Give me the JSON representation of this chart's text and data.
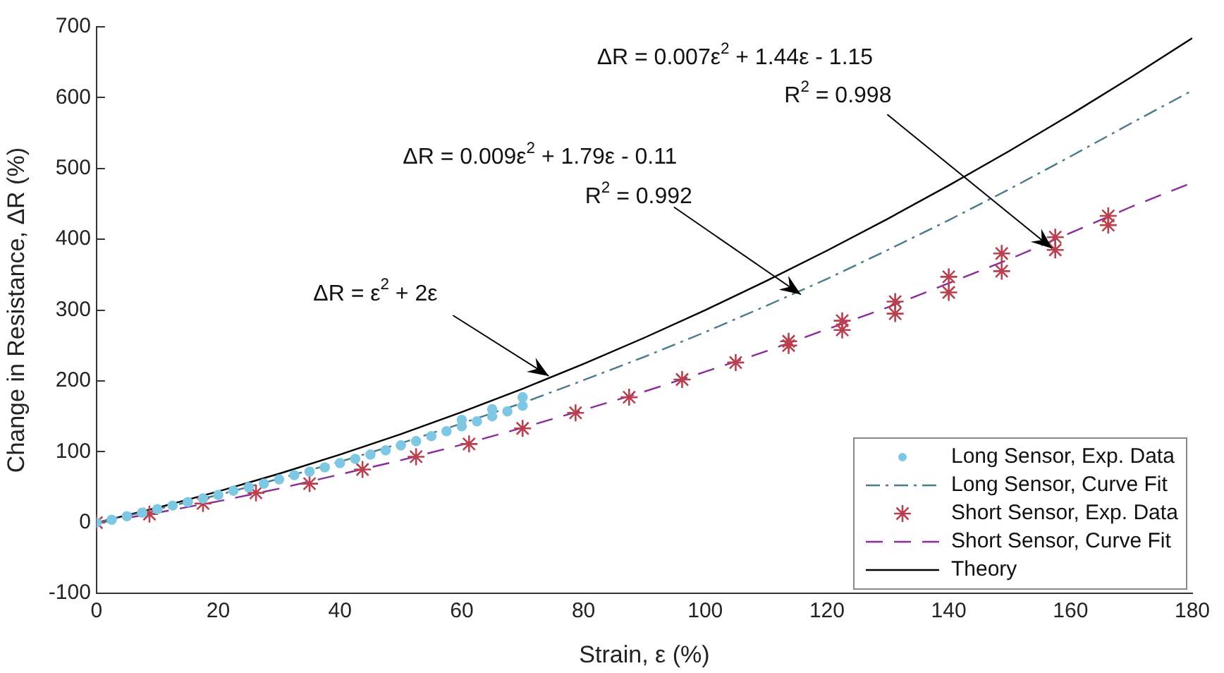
{
  "chart_data": {
    "type": "scatter",
    "xlabel": "Strain, ε (%)",
    "ylabel": "Change in Resistance, ΔR (%)",
    "xlim": [
      0,
      180
    ],
    "xticks": [
      0,
      20,
      40,
      60,
      80,
      100,
      120,
      140,
      160,
      180
    ],
    "ylim": [
      -100,
      700
    ],
    "yticks": [
      -100,
      0,
      100,
      200,
      300,
      400,
      500,
      600,
      700
    ],
    "grid": false,
    "legend": "bottom right",
    "series": [
      {
        "name": "Long Sensor, Exp. Data",
        "type": "scatter",
        "marker": "circle",
        "color": "#7ec8e3",
        "x": [
          0,
          2.5,
          5,
          7.5,
          10,
          12.5,
          15,
          17.5,
          20,
          22.5,
          25,
          27.5,
          30,
          32.5,
          35,
          37.5,
          40,
          42.5,
          45,
          47.5,
          50,
          52.5,
          55,
          57.5,
          60,
          60,
          62.5,
          65,
          65,
          67.5,
          70,
          70
        ],
        "values": [
          0,
          4,
          9,
          14,
          19,
          24,
          29,
          34,
          39,
          45,
          50,
          55,
          61,
          67,
          72,
          78,
          84,
          90,
          96,
          102,
          109,
          115,
          122,
          129,
          136,
          145,
          143,
          150,
          160,
          157,
          165,
          177
        ]
      },
      {
        "name": "Long Sensor, Curve Fit",
        "type": "line",
        "marker": "none",
        "line_style": "dashdot",
        "color": "#4a7a8c",
        "x": [
          0,
          10,
          20,
          30,
          40,
          50,
          60,
          70,
          80,
          90,
          100,
          110,
          120,
          130,
          140,
          150,
          160,
          170,
          180
        ],
        "values": [
          0,
          19,
          39,
          62,
          86,
          112,
          140,
          169,
          201,
          234,
          269,
          306,
          344,
          385,
          427,
          471,
          517,
          564,
          610
        ]
      },
      {
        "name": "Short Sensor, Exp. Data",
        "type": "scatter",
        "marker": "cross",
        "color": "#b8404f",
        "x": [
          0,
          8.7,
          17.5,
          26.2,
          35,
          43.7,
          52.5,
          61.2,
          70,
          78.7,
          87.5,
          96.2,
          105,
          113.7,
          113.7,
          122.5,
          122.5,
          131.2,
          131.2,
          140,
          140,
          148.7,
          148.7,
          157.5,
          157.5,
          166.2,
          166.2
        ],
        "values": [
          0,
          12,
          27,
          42,
          55,
          75,
          93,
          111,
          133,
          155,
          177,
          202,
          226,
          250,
          256,
          272,
          285,
          295,
          312,
          325,
          347,
          355,
          380,
          385,
          403,
          420,
          433
        ]
      },
      {
        "name": "Short Sensor, Curve Fit",
        "type": "line",
        "marker": "none",
        "line_style": "dashed",
        "color": "#8b2c9b",
        "x": [
          0,
          10,
          20,
          30,
          40,
          50,
          60,
          70,
          80,
          90,
          100,
          110,
          120,
          130,
          140,
          150,
          160,
          170,
          180
        ],
        "values": [
          -1,
          14,
          30,
          48,
          68,
          88,
          110,
          134,
          159,
          185,
          213,
          242,
          273,
          304,
          338,
          372,
          409,
          446,
          480
        ]
      },
      {
        "name": "Theory",
        "type": "line",
        "marker": "none",
        "line_style": "solid",
        "color": "#000000",
        "x": [
          0,
          10,
          20,
          30,
          40,
          50,
          60,
          70,
          80,
          90,
          100,
          110,
          120,
          130,
          140,
          150,
          160,
          170,
          180
        ],
        "values": [
          0,
          21,
          44,
          69,
          96,
          125,
          156,
          189,
          224,
          261,
          300,
          341,
          384,
          429,
          476,
          525,
          576,
          629,
          684
        ]
      }
    ],
    "annotations": [
      {
        "text": "ΔR = ε$^{2}$ + 2ε",
        "x": 74.3,
        "y": 207
      },
      {
        "text": "ΔR = 0.009ε$^{2}$ + 1.79ε - 0.11\nR$^{2}$ = 0.992",
        "x": 115.7,
        "y": 322
      },
      {
        "text": "ΔR = 0.007ε$^{2}$ + 1.44ε - 1.15\nR$^{2}$ = 0.998",
        "x": 157,
        "y": 387
      }
    ]
  }
}
